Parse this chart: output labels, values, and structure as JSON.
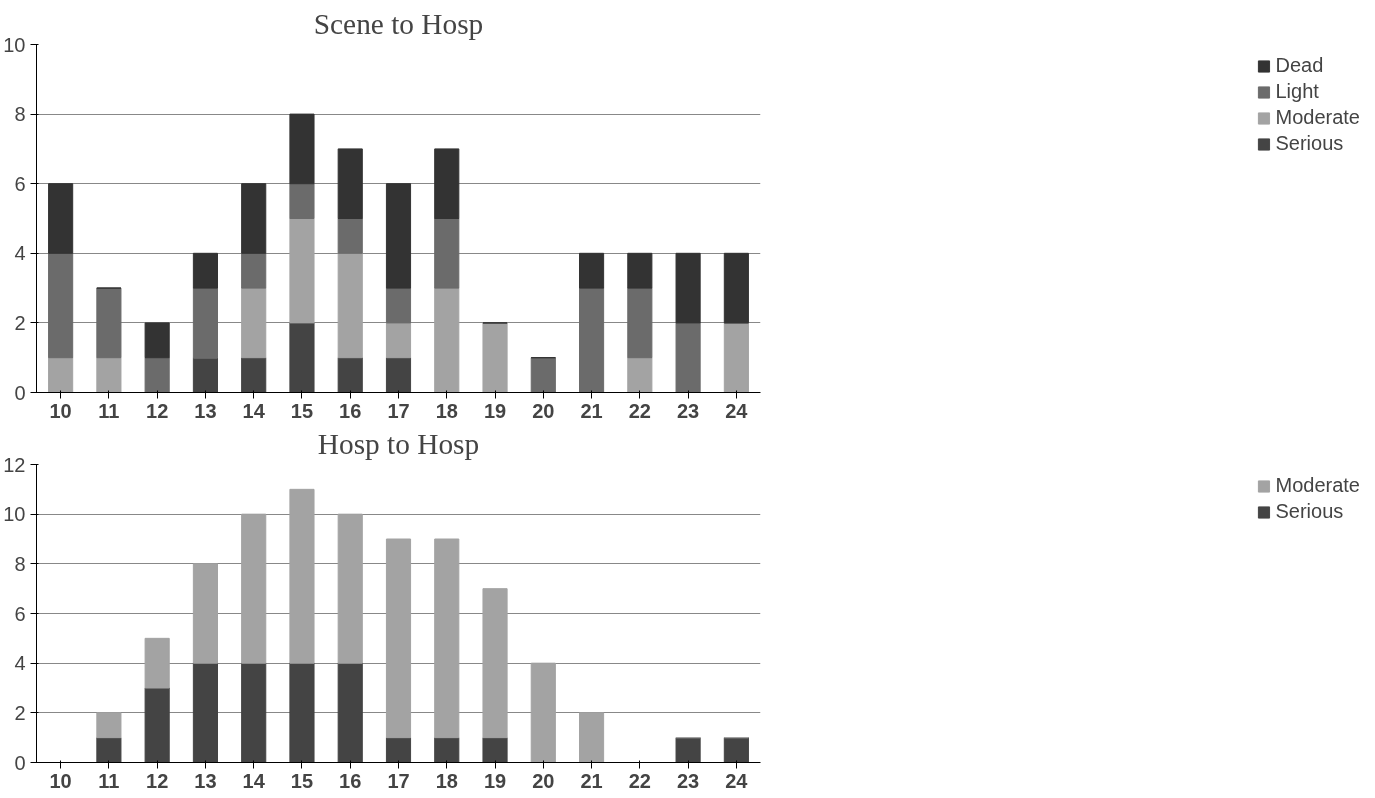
{
  "chart_data": [
    {
      "type": "bar",
      "title": "Scene to Hosp",
      "stacked": true,
      "categories": [
        "10",
        "11",
        "12",
        "13",
        "14",
        "15",
        "16",
        "17",
        "18",
        "19",
        "20",
        "21",
        "22",
        "23",
        "24"
      ],
      "ylim": [
        0,
        10
      ],
      "yticks": [
        0,
        2,
        4,
        6,
        8,
        10
      ],
      "grid": "y",
      "legend": "right",
      "series": [
        {
          "name": "Serious",
          "color": "#444444",
          "values": [
            0,
            0,
            0,
            1,
            1,
            2,
            1,
            1,
            0,
            0,
            0,
            0,
            0,
            0,
            0
          ]
        },
        {
          "name": "Moderate",
          "color": "#a3a3a3",
          "values": [
            1,
            1,
            0,
            0,
            2,
            3,
            3,
            1,
            3,
            2,
            0,
            0,
            1,
            0,
            2
          ]
        },
        {
          "name": "Light",
          "color": "#6b6b6b",
          "values": [
            3,
            2,
            1,
            2,
            1,
            1,
            1,
            1,
            2,
            0,
            1,
            3,
            2,
            2,
            0
          ]
        },
        {
          "name": "Dead",
          "color": "#333333",
          "values": [
            2,
            0,
            1,
            1,
            2,
            2,
            2,
            3,
            2,
            0,
            0,
            1,
            1,
            2,
            2
          ]
        }
      ]
    },
    {
      "type": "bar",
      "title": "Hosp to Hosp",
      "stacked": true,
      "categories": [
        "10",
        "11",
        "12",
        "13",
        "14",
        "15",
        "16",
        "17",
        "18",
        "19",
        "20",
        "21",
        "22",
        "23",
        "24"
      ],
      "ylim": [
        0,
        12
      ],
      "yticks": [
        0,
        2,
        4,
        6,
        8,
        10,
        12
      ],
      "grid": "y",
      "legend": "right",
      "series": [
        {
          "name": "Serious",
          "color": "#444444",
          "values": [
            0,
            1,
            3,
            4,
            4,
            4,
            4,
            1,
            1,
            1,
            0,
            0,
            0,
            1,
            1
          ]
        },
        {
          "name": "Moderate",
          "color": "#a3a3a3",
          "values": [
            0,
            1,
            2,
            4,
            6,
            7,
            6,
            8,
            8,
            6,
            4,
            2,
            0,
            0,
            0
          ]
        }
      ]
    }
  ]
}
